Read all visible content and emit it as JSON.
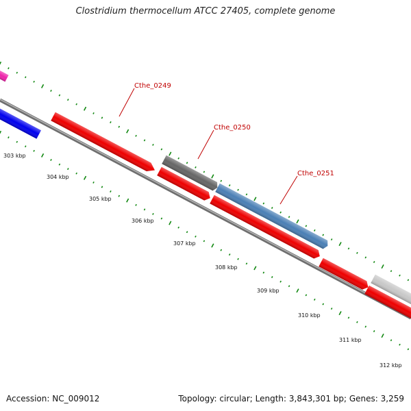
{
  "title": "Clostridium thermocellum ATCC 27405, complete genome",
  "footer": {
    "accession": "Accession: NC_009012",
    "summary": "Topology: circular; Length: 3,843,301 bp; Genes: 3,259"
  },
  "ruler": {
    "labels": [
      "303 kbp",
      "304 kbp",
      "305 kbp",
      "306 kbp",
      "307 kbp",
      "308 kbp",
      "309 kbp",
      "310 kbp",
      "311 kbp",
      "312 kbp"
    ]
  },
  "genes": [
    {
      "label": "Cthe_0249",
      "color": "#ee0000"
    },
    {
      "label": "Cthe_0250",
      "color": "#666666"
    },
    {
      "label": "Cthe_0251",
      "color": "#4a7fb5"
    }
  ],
  "colors": {
    "forward_red": "#ee0000",
    "reverse_red": "#ee0000",
    "blue": "#0000ee",
    "magenta": "#ee22aa",
    "gray": "#666666",
    "steelblue": "#4a7fb5",
    "lightgray": "#c8c8c8",
    "tick_green": "#118811",
    "backbone": "#808080"
  }
}
